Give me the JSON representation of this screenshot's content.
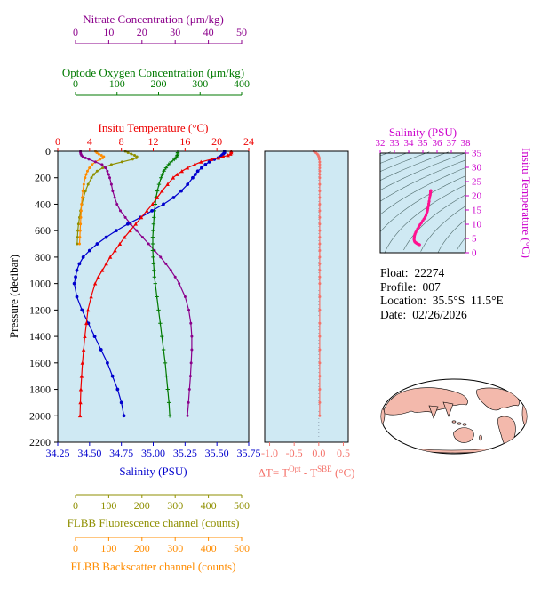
{
  "colors": {
    "plot_bg": "#cfe9f3",
    "nitrate": "#8B008B",
    "oxygen": "#007A00",
    "temperature": "#EE0000",
    "salinity": "#0000CD",
    "fluorescence": "#8F8F00",
    "backscatter": "#FF8C00",
    "delta_t": "#F4736B",
    "ts_axis": "#CC00CC",
    "ts_curve": "#FF1090",
    "contour": "#4F6B6B",
    "axis": "#000000",
    "map_land": "#F3B9AC"
  },
  "info": {
    "lines": [
      {
        "label": "Float:",
        "value": "22274"
      },
      {
        "label": "Profile:",
        "value": "007"
      },
      {
        "label": "Location:",
        "value": "35.5°S  11.5°E"
      },
      {
        "label": "Date:",
        "value": "02/26/2026"
      }
    ]
  },
  "chart_data": [
    {
      "id": "profile-panel",
      "type": "line",
      "y_axis": {
        "label": "Pressure (decibar)",
        "range": [
          0,
          2200
        ],
        "tick_values": [
          0,
          200,
          400,
          600,
          800,
          1000,
          1200,
          1400,
          1600,
          1800,
          2000,
          2200
        ],
        "tick_labels": [
          "0",
          "200",
          "400",
          "600",
          "800",
          "1000",
          "1200",
          "1400",
          "1600",
          "1800",
          "2000",
          "2200"
        ]
      },
      "x_axes": [
        {
          "id": "nitrate",
          "label": "Nitrate Concentration (μm/kg)",
          "color_key": "nitrate",
          "span": "inset",
          "range": [
            0,
            50
          ],
          "tick_values": [
            0,
            10,
            20,
            30,
            40,
            50
          ],
          "tick_labels": [
            "0",
            "10",
            "20",
            "30",
            "40",
            "50"
          ]
        },
        {
          "id": "oxygen",
          "label": "Optode Oxygen Concentration (μm/kg)",
          "color_key": "oxygen",
          "span": "inset",
          "range": [
            0,
            400
          ],
          "tick_values": [
            0,
            100,
            200,
            300,
            400
          ],
          "tick_labels": [
            "0",
            "100",
            "200",
            "300",
            "400"
          ]
        },
        {
          "id": "temperature",
          "label": "Insitu Temperature (°C)",
          "color_key": "temperature",
          "span": "full",
          "range": [
            0,
            24
          ],
          "tick_values": [
            0,
            4,
            8,
            12,
            16,
            20,
            24
          ],
          "tick_labels": [
            "0",
            "4",
            "8",
            "12",
            "16",
            "20",
            "24"
          ]
        },
        {
          "id": "salinity",
          "label": "Salinity (PSU)",
          "color_key": "salinity",
          "span": "full",
          "range": [
            34.25,
            35.75
          ],
          "tick_values": [
            34.25,
            34.5,
            34.75,
            35,
            35.25,
            35.5,
            35.75
          ],
          "tick_labels": [
            "34.25",
            "34.50",
            "34.75",
            "35.00",
            "35.25",
            "35.50",
            "35.75"
          ]
        },
        {
          "id": "fluorescence",
          "label": "FLBB Fluorescence channel (counts)",
          "color_key": "fluorescence",
          "span": "inset",
          "range": [
            0,
            500
          ],
          "tick_values": [
            0,
            100,
            200,
            300,
            400,
            500
          ],
          "tick_labels": [
            "0",
            "100",
            "200",
            "300",
            "400",
            "500"
          ]
        },
        {
          "id": "backscatter",
          "label": "FLBB Backscatter channel (counts)",
          "color_key": "backscatter",
          "span": "inset",
          "range": [
            0,
            500
          ],
          "tick_values": [
            0,
            100,
            200,
            300,
            400,
            500
          ],
          "tick_labels": [
            "0",
            "100",
            "200",
            "300",
            "400",
            "500"
          ]
        }
      ],
      "pressure": [
        0,
        10,
        20,
        30,
        40,
        50,
        60,
        80,
        100,
        125,
        150,
        175,
        200,
        250,
        300,
        350,
        400,
        450,
        500,
        550,
        600,
        650,
        700,
        750,
        800,
        850,
        900,
        950,
        1000,
        1100,
        1200,
        1300,
        1400,
        1500,
        1600,
        1700,
        1800,
        1900,
        2000
      ],
      "series": [
        {
          "name": "FLBB Fluorescence",
          "axis": "fluorescence",
          "color_key": "fluorescence",
          "marker": "dot",
          "values": [
            150,
            158,
            168,
            178,
            185,
            183,
            172,
            140,
            108,
            82,
            65,
            55,
            48,
            38,
            30,
            24,
            19,
            15,
            12,
            9,
            7,
            6,
            5,
            null,
            null,
            null,
            null,
            null,
            null,
            null,
            null,
            null,
            null,
            null,
            null,
            null,
            null,
            null,
            null
          ]
        },
        {
          "name": "FLBB Backscatter",
          "axis": "backscatter",
          "color_key": "backscatter",
          "marker": "dot",
          "values": [
            60,
            64,
            70,
            78,
            85,
            82,
            74,
            60,
            50,
            42,
            36,
            32,
            29,
            25,
            22,
            20,
            18,
            17,
            16,
            15,
            14,
            13,
            12,
            null,
            null,
            null,
            null,
            null,
            null,
            null,
            null,
            null,
            null,
            null,
            null,
            null,
            null,
            null,
            null
          ]
        },
        {
          "name": "Nitrate",
          "axis": "nitrate",
          "color_key": "nitrate",
          "marker": "dot",
          "values": [
            1.5,
            1.5,
            1.6,
            1.8,
            2.2,
            3.0,
            4.0,
            6.0,
            8.0,
            9.0,
            9.6,
            10.0,
            10.3,
            10.8,
            11.2,
            11.8,
            12.5,
            13.5,
            15.0,
            16.6,
            18.4,
            20.2,
            22.0,
            23.8,
            25.6,
            27.2,
            28.7,
            30.0,
            31.2,
            33.0,
            34.1,
            34.7,
            35.0,
            35.0,
            34.8,
            34.6,
            34.3,
            34.0,
            33.7
          ]
        },
        {
          "name": "Optode Oxygen",
          "axis": "oxygen",
          "color_key": "oxygen",
          "marker": "plus",
          "values": [
            246,
            246,
            246,
            245,
            244,
            242,
            238,
            230,
            224,
            218,
            213,
            209,
            206,
            201,
            197,
            194,
            192,
            190,
            189,
            188,
            187,
            186,
            186,
            186,
            187,
            188,
            189,
            190,
            192,
            196,
            200,
            204,
            208,
            212,
            216,
            219,
            222,
            225,
            227
          ]
        },
        {
          "name": "Salinity",
          "axis": "salinity",
          "color_key": "salinity",
          "marker": "circle",
          "values": [
            35.56,
            35.56,
            35.55,
            35.54,
            35.53,
            35.51,
            35.48,
            35.44,
            35.41,
            35.38,
            35.35,
            35.33,
            35.31,
            35.27,
            35.22,
            35.16,
            35.08,
            34.99,
            34.9,
            34.8,
            34.71,
            34.63,
            34.56,
            34.5,
            34.45,
            34.42,
            34.4,
            34.39,
            34.38,
            34.4,
            34.44,
            34.49,
            34.54,
            34.59,
            34.64,
            34.68,
            34.72,
            34.75,
            34.77
          ]
        },
        {
          "name": "Insitu Temperature",
          "axis": "temperature",
          "color_key": "temperature",
          "marker": "triangle",
          "values": [
            21.8,
            21.8,
            21.7,
            21.4,
            20.8,
            20.2,
            19.3,
            18.0,
            17.2,
            16.3,
            15.6,
            15.0,
            14.5,
            13.8,
            13.1,
            12.5,
            11.9,
            11.2,
            10.5,
            9.8,
            9.1,
            8.4,
            7.8,
            7.2,
            6.6,
            6.1,
            5.6,
            5.1,
            4.7,
            4.2,
            3.8,
            3.6,
            3.4,
            3.25,
            3.1,
            3.0,
            2.9,
            2.85,
            2.8
          ]
        }
      ]
    },
    {
      "id": "delta-t-panel",
      "type": "line",
      "x_axis": {
        "label_parts": [
          {
            "t": "ΔT= T"
          },
          {
            "t": "Opt",
            "sup": true
          },
          {
            "t": " - T"
          },
          {
            "t": "SBE",
            "sup": true
          },
          {
            "t": " (°C)"
          }
        ],
        "color_key": "delta_t",
        "range": [
          -1.1,
          0.6
        ],
        "tick_values": [
          -1,
          -0.5,
          0,
          0.5
        ],
        "tick_labels": [
          "-1.0",
          "-0.5",
          "0.0",
          "0.5"
        ]
      },
      "y_axis": {
        "shared_with": "profile-panel"
      },
      "pressure": [
        0,
        10,
        20,
        30,
        40,
        50,
        60,
        80,
        100,
        125,
        150,
        175,
        200,
        250,
        300,
        350,
        400,
        450,
        500,
        550,
        600,
        650,
        700,
        750,
        800,
        850,
        900,
        950,
        1000,
        1100,
        1200,
        1300,
        1400,
        1500,
        1600,
        1700,
        1800,
        1900,
        2000
      ],
      "values": [
        -0.1,
        -0.06,
        -0.03,
        -0.01,
        0.0,
        0.01,
        0.01,
        0.02,
        0.02,
        0.02,
        0.02,
        0.02,
        0.02,
        0.02,
        0.02,
        0.02,
        0.02,
        0.02,
        0.02,
        0.02,
        0.02,
        0.02,
        0.02,
        0.02,
        0.02,
        0.02,
        0.02,
        0.02,
        0.02,
        0.02,
        0.02,
        0.02,
        0.02,
        0.02,
        0.02,
        0.02,
        0.02,
        0.02,
        0.02
      ]
    },
    {
      "id": "ts-panel",
      "type": "scatter",
      "x_axis": {
        "label": "Salinity (PSU)",
        "color_key": "ts_axis",
        "range": [
          32,
          38
        ],
        "tick_values": [
          32,
          33,
          34,
          35,
          36,
          37,
          38
        ],
        "tick_labels": [
          "32",
          "33",
          "34",
          "35",
          "36",
          "37",
          "38"
        ]
      },
      "y_axis": {
        "label": "Insitu Temperature (°C)",
        "color_key": "ts_axis",
        "range": [
          0,
          35
        ],
        "tick_values": [
          0,
          5,
          10,
          15,
          20,
          25,
          30,
          35
        ],
        "tick_labels": [
          "0",
          "5",
          "10",
          "15",
          "20",
          "25",
          "30",
          "35"
        ]
      },
      "contour_levels": [
        18,
        19,
        20,
        21,
        22,
        23,
        24,
        25,
        26,
        27,
        28,
        29,
        30
      ],
      "salinity": [
        35.56,
        35.56,
        35.55,
        35.54,
        35.53,
        35.51,
        35.48,
        35.44,
        35.41,
        35.38,
        35.35,
        35.33,
        35.31,
        35.27,
        35.22,
        35.16,
        35.08,
        34.99,
        34.9,
        34.8,
        34.71,
        34.63,
        34.56,
        34.5,
        34.45,
        34.42,
        34.4,
        34.39,
        34.38,
        34.4,
        34.44,
        34.49,
        34.54,
        34.59,
        34.64,
        34.68,
        34.72,
        34.75,
        34.77
      ],
      "temperature": [
        21.8,
        21.8,
        21.7,
        21.4,
        20.8,
        20.2,
        19.3,
        18.0,
        17.2,
        16.3,
        15.6,
        15.0,
        14.5,
        13.8,
        13.1,
        12.5,
        11.9,
        11.2,
        10.5,
        9.8,
        9.1,
        8.4,
        7.8,
        7.2,
        6.6,
        6.1,
        5.6,
        5.1,
        4.7,
        4.2,
        3.8,
        3.6,
        3.4,
        3.25,
        3.1,
        3.0,
        2.9,
        2.85,
        2.8
      ]
    }
  ]
}
